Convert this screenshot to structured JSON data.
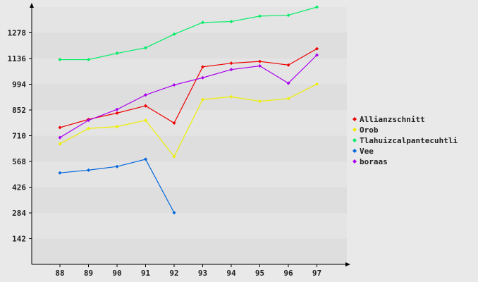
{
  "chart_data": {
    "type": "line",
    "title": "",
    "xlabel": "",
    "ylabel": "",
    "x": [
      "88",
      "89",
      "90",
      "91",
      "92",
      "93",
      "94",
      "95",
      "96",
      "97"
    ],
    "yticks": [
      "142",
      "284",
      "426",
      "568",
      "710",
      "852",
      "994",
      "1136",
      "1278"
    ],
    "ylim": [
      0,
      1420
    ],
    "grid": "horizontal bands",
    "legend_position": "right",
    "series": [
      {
        "name": "Allianzschnitt",
        "color": "#ee0000",
        "values": [
          755,
          800,
          835,
          875,
          780,
          1090,
          1110,
          1120,
          1100,
          1190
        ]
      },
      {
        "name": "Orob",
        "color": "#eeee00",
        "values": [
          665,
          750,
          760,
          795,
          595,
          910,
          925,
          900,
          915,
          995
        ]
      },
      {
        "name": "Tlahuizcalpantecuhtli",
        "color": "#00ee66",
        "values": [
          1130,
          1130,
          1165,
          1195,
          1270,
          1335,
          1340,
          1370,
          1375,
          1420
        ]
      },
      {
        "name": "Vee",
        "color": "#0066dd",
        "values": [
          505,
          520,
          540,
          580,
          285,
          null,
          null,
          null,
          null,
          null
        ]
      },
      {
        "name": "boraas",
        "color": "#aa00ee",
        "values": [
          700,
          795,
          855,
          935,
          990,
          1030,
          1075,
          1095,
          1000,
          1155
        ]
      }
    ]
  }
}
